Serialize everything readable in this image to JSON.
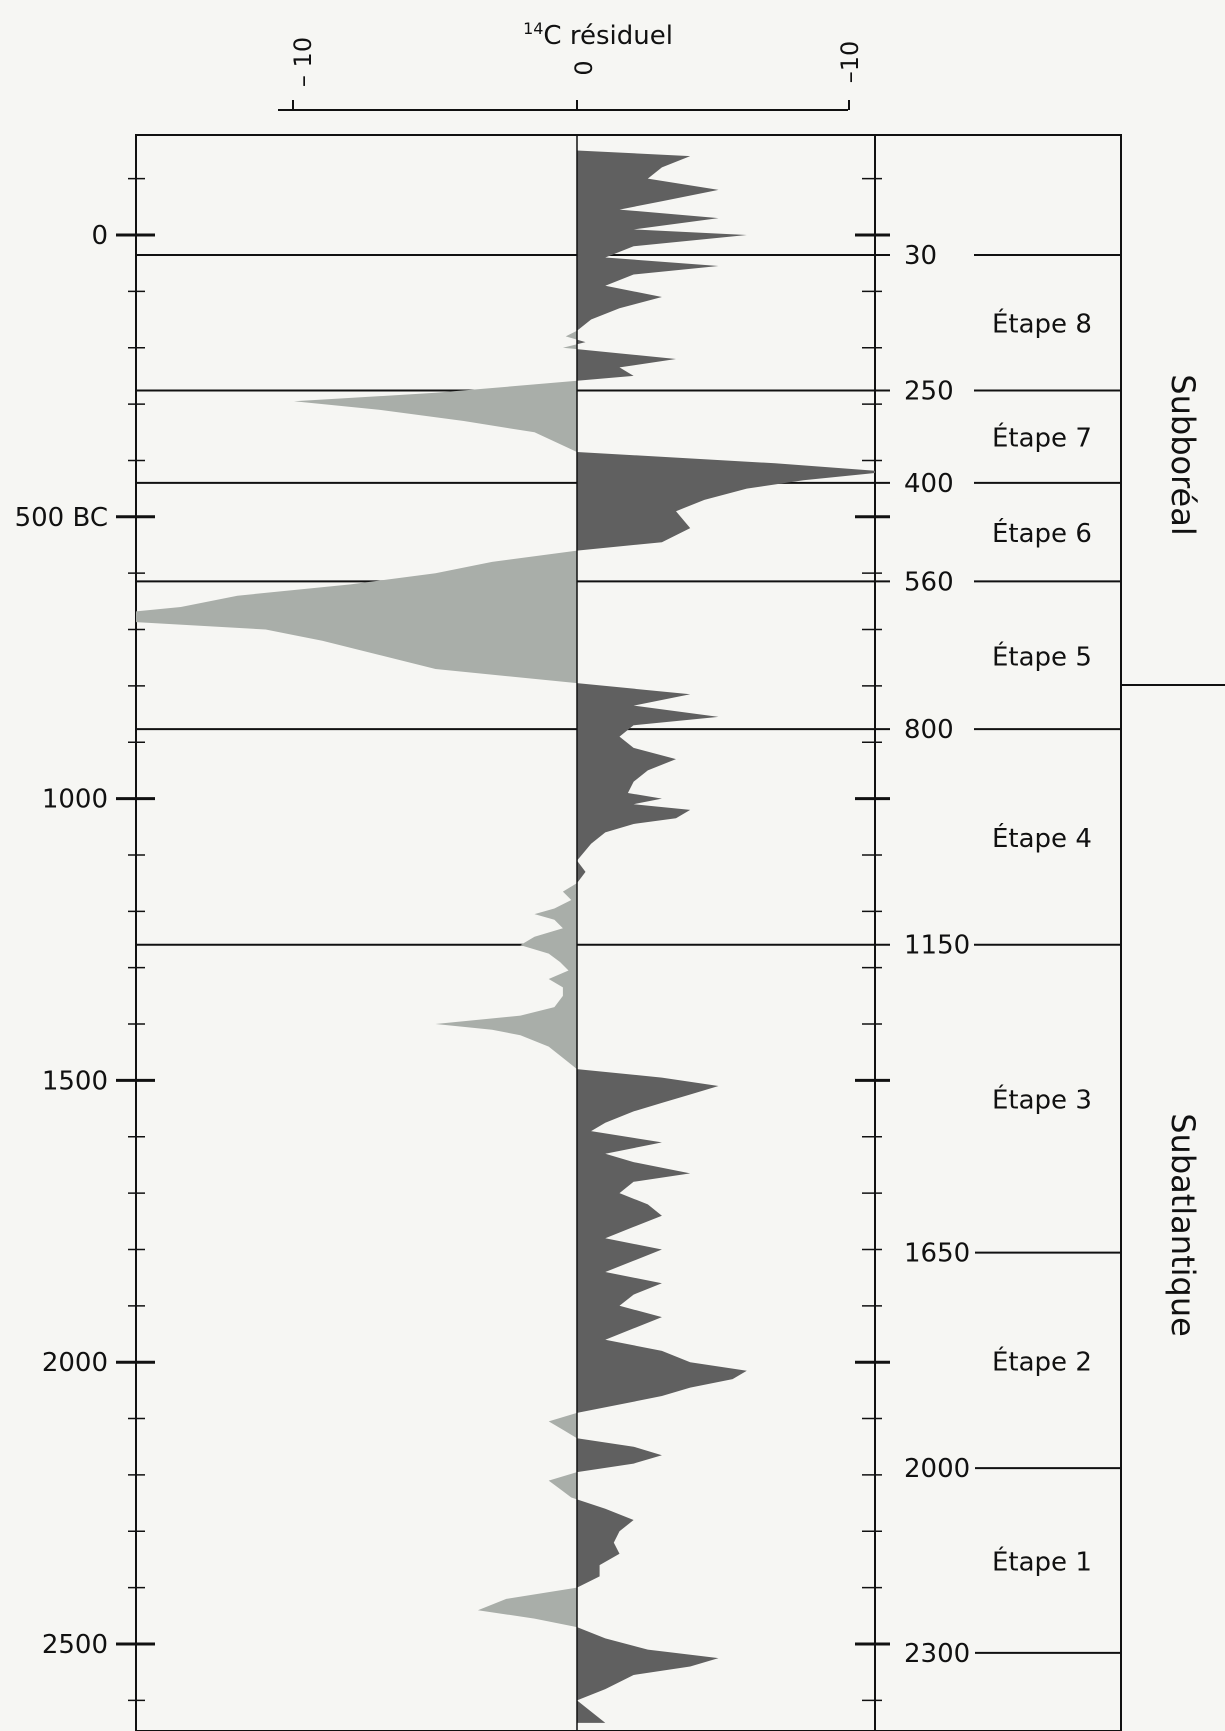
{
  "chart_data": {
    "type": "area",
    "title": "",
    "top_axis": {
      "label_sup": "14",
      "label_main": "C résiduel",
      "ticks": [
        "– 10",
        "0",
        "–10"
      ],
      "tick_values": [
        10,
        0,
        -10
      ]
    },
    "left_axis": {
      "direction": "depth increasing downward",
      "ticks": [
        {
          "label": "0",
          "value": 0
        },
        {
          "label": "500 BC",
          "value": 500
        },
        {
          "label": "1000",
          "value": 1000
        },
        {
          "label": "1500",
          "value": 1500
        },
        {
          "label": "2000",
          "value": 2000
        },
        {
          "label": "2500",
          "value": 2500
        }
      ],
      "minor_step": 100
    },
    "right_axis": {
      "ticks": [
        {
          "label": "30",
          "value": 30
        },
        {
          "label": "250",
          "value": 250
        },
        {
          "label": "400",
          "value": 400
        },
        {
          "label": "560",
          "value": 560
        },
        {
          "label": "800",
          "value": 800
        },
        {
          "label": "1150",
          "value": 1150
        },
        {
          "label": "1650",
          "value": 1650
        },
        {
          "label": "2000",
          "value": 2000
        },
        {
          "label": "2300",
          "value": 2300
        }
      ]
    },
    "stages": [
      {
        "label": "Étape 8",
        "from": 30,
        "to": 250
      },
      {
        "label": "Étape 7",
        "from": 250,
        "to": 400
      },
      {
        "label": "Étape 6",
        "from": 400,
        "to": 560
      },
      {
        "label": "Étape 5",
        "from": 560,
        "to": 800
      },
      {
        "label": "Étape 4",
        "from": 800,
        "to": 1150
      },
      {
        "label": "Étape 3",
        "from": 1150,
        "to": 1650
      },
      {
        "label": "Étape 2",
        "from": 1650,
        "to": 2000
      },
      {
        "label": "Étape 1",
        "from": 2000,
        "to": 2300
      }
    ],
    "periods": [
      {
        "label": "Subboréal",
        "from": 30,
        "to": 800
      },
      {
        "label": "Subatlantique",
        "from": 800,
        "to": 2650
      }
    ],
    "series": [
      {
        "fill_positive": "#606060",
        "fill_negative": "#a9aea9",
        "points": [
          [
            -150,
            0
          ],
          [
            -140,
            -4
          ],
          [
            -120,
            -3
          ],
          [
            -100,
            -2.5
          ],
          [
            -80,
            -5
          ],
          [
            -60,
            -3
          ],
          [
            -45,
            -1.5
          ],
          [
            -30,
            -5
          ],
          [
            -10,
            -2
          ],
          [
            0,
            -6
          ],
          [
            20,
            -2
          ],
          [
            40,
            -1
          ],
          [
            55,
            -5
          ],
          [
            70,
            -2
          ],
          [
            90,
            -1
          ],
          [
            110,
            -3
          ],
          [
            130,
            -1.5
          ],
          [
            150,
            -0.5
          ],
          [
            170,
            0
          ],
          [
            180,
            0.4
          ],
          [
            190,
            -0.3
          ],
          [
            200,
            0.5
          ],
          [
            210,
            -1.5
          ],
          [
            220,
            -3.5
          ],
          [
            235,
            -1.5
          ],
          [
            250,
            -2
          ],
          [
            265,
            1.5
          ],
          [
            280,
            5
          ],
          [
            295,
            10
          ],
          [
            310,
            7
          ],
          [
            330,
            4
          ],
          [
            350,
            1.5
          ],
          [
            385,
            0
          ],
          [
            405,
            -7
          ],
          [
            420,
            -11
          ],
          [
            435,
            -8
          ],
          [
            450,
            -6
          ],
          [
            470,
            -4.5
          ],
          [
            490,
            -3.5
          ],
          [
            520,
            -4
          ],
          [
            545,
            -3
          ],
          [
            560,
            0
          ],
          [
            580,
            3
          ],
          [
            600,
            5
          ],
          [
            620,
            8
          ],
          [
            640,
            12
          ],
          [
            660,
            14
          ],
          [
            680,
            18
          ],
          [
            700,
            11
          ],
          [
            720,
            9
          ],
          [
            745,
            7
          ],
          [
            770,
            5
          ],
          [
            795,
            0
          ],
          [
            815,
            -4
          ],
          [
            835,
            -2
          ],
          [
            855,
            -5
          ],
          [
            870,
            -2
          ],
          [
            890,
            -1.5
          ],
          [
            910,
            -2
          ],
          [
            930,
            -3.5
          ],
          [
            950,
            -2.5
          ],
          [
            970,
            -2
          ],
          [
            990,
            -1.8
          ],
          [
            1000,
            -3
          ],
          [
            1010,
            -2
          ],
          [
            1020,
            -4
          ],
          [
            1035,
            -3.5
          ],
          [
            1045,
            -2
          ],
          [
            1060,
            -1
          ],
          [
            1080,
            -0.5
          ],
          [
            1110,
            0
          ],
          [
            1130,
            -0.3
          ],
          [
            1150,
            0
          ],
          [
            1165,
            0.5
          ],
          [
            1180,
            0.2
          ],
          [
            1195,
            0.8
          ],
          [
            1205,
            1.5
          ],
          [
            1215,
            0.8
          ],
          [
            1230,
            0.5
          ],
          [
            1245,
            1.5
          ],
          [
            1260,
            2
          ],
          [
            1275,
            1
          ],
          [
            1290,
            0.6
          ],
          [
            1305,
            0.3
          ],
          [
            1320,
            1
          ],
          [
            1335,
            0.5
          ],
          [
            1350,
            0.5
          ],
          [
            1370,
            0.8
          ],
          [
            1385,
            2
          ],
          [
            1400,
            5
          ],
          [
            1410,
            3
          ],
          [
            1420,
            2
          ],
          [
            1440,
            1
          ],
          [
            1460,
            0.5
          ],
          [
            1480,
            0
          ],
          [
            1495,
            -3
          ],
          [
            1510,
            -5
          ],
          [
            1525,
            -4
          ],
          [
            1540,
            -3
          ],
          [
            1555,
            -2
          ],
          [
            1575,
            -1
          ],
          [
            1590,
            -0.5
          ],
          [
            1610,
            -3
          ],
          [
            1630,
            -1
          ],
          [
            1645,
            -2
          ],
          [
            1665,
            -4
          ],
          [
            1680,
            -2
          ],
          [
            1700,
            -1.5
          ],
          [
            1720,
            -2.5
          ],
          [
            1740,
            -3
          ],
          [
            1760,
            -2
          ],
          [
            1780,
            -1
          ],
          [
            1800,
            -3
          ],
          [
            1820,
            -2
          ],
          [
            1840,
            -1
          ],
          [
            1860,
            -3
          ],
          [
            1880,
            -2
          ],
          [
            1900,
            -1.5
          ],
          [
            1920,
            -3
          ],
          [
            1940,
            -2
          ],
          [
            1960,
            -1
          ],
          [
            1980,
            -3
          ],
          [
            2000,
            -4
          ],
          [
            2015,
            -6
          ],
          [
            2030,
            -5.5
          ],
          [
            2045,
            -4
          ],
          [
            2060,
            -3
          ],
          [
            2075,
            -1.5
          ],
          [
            2090,
            0
          ],
          [
            2105,
            1
          ],
          [
            2120,
            0.5
          ],
          [
            2135,
            0
          ],
          [
            2150,
            -2
          ],
          [
            2165,
            -3
          ],
          [
            2180,
            -2
          ],
          [
            2195,
            0
          ],
          [
            2210,
            1
          ],
          [
            2225,
            0.6
          ],
          [
            2240,
            0.2
          ],
          [
            2260,
            -1
          ],
          [
            2280,
            -2
          ],
          [
            2300,
            -1.5
          ],
          [
            2320,
            -1.3
          ],
          [
            2340,
            -1.5
          ],
          [
            2360,
            -0.8
          ],
          [
            2380,
            -0.8
          ],
          [
            2400,
            0
          ],
          [
            2420,
            2.5
          ],
          [
            2440,
            3.5
          ],
          [
            2455,
            1.5
          ],
          [
            2470,
            0
          ],
          [
            2490,
            -1
          ],
          [
            2510,
            -2.5
          ],
          [
            2525,
            -5
          ],
          [
            2540,
            -4
          ],
          [
            2555,
            -2
          ],
          [
            2580,
            -1
          ],
          [
            2600,
            0
          ],
          [
            2640,
            -1
          ]
        ]
      }
    ]
  }
}
